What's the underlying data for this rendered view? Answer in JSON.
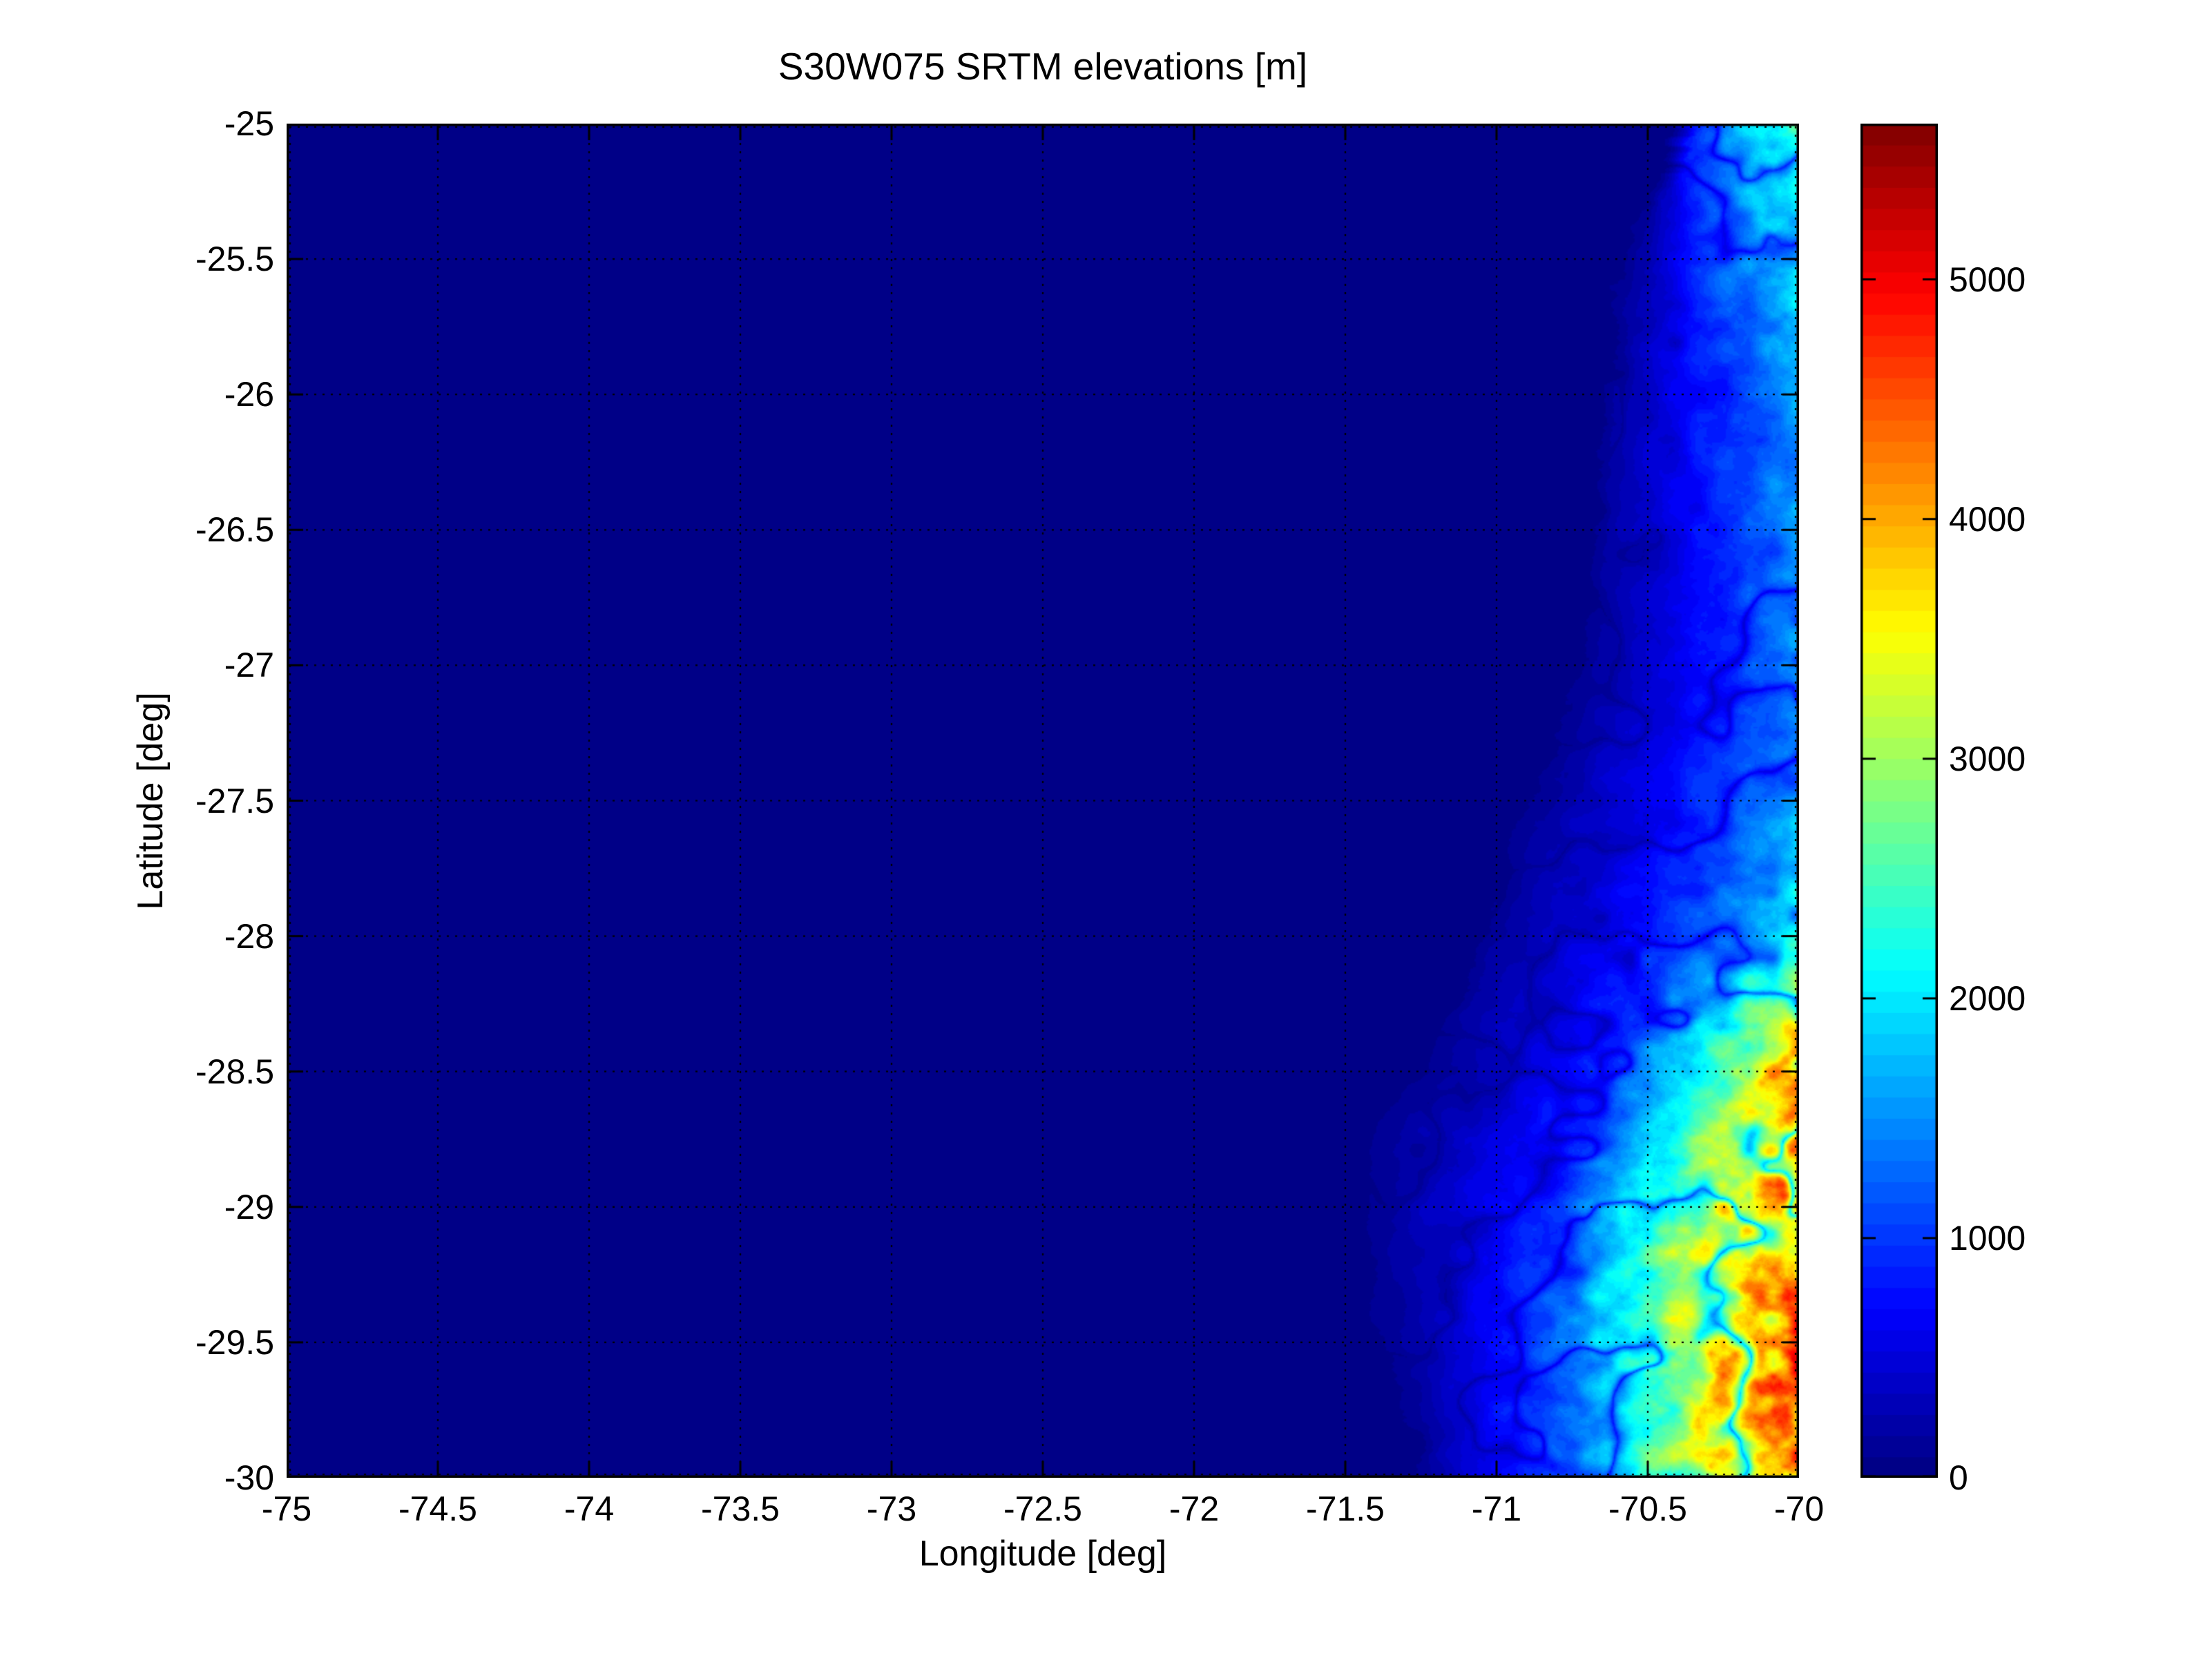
{
  "figure": {
    "title": "S30W075 SRTM elevations [m]",
    "xlabel": "Longitude [deg]",
    "ylabel": "Latitude [deg]"
  },
  "axes": {
    "xlim": [
      -75,
      -70
    ],
    "ylim": [
      -30,
      -25
    ],
    "x_ticks": [
      -75,
      -74.5,
      -74,
      -73.5,
      -73,
      -72.5,
      -72,
      -71.5,
      -71,
      -70.5,
      -70
    ],
    "y_ticks": [
      -25,
      -25.5,
      -26,
      -26.5,
      -27,
      -27.5,
      -28,
      -28.5,
      -29,
      -29.5,
      -30
    ],
    "grid_style": "dotted",
    "box_color": "#000000"
  },
  "colorbar": {
    "vmin": 0,
    "vmax": 5650,
    "ticks": [
      0,
      1000,
      2000,
      3000,
      4000,
      5000
    ],
    "colormap": "jet",
    "levels": 64
  },
  "colors": {
    "ocean": "#000087",
    "background": "#ffffff",
    "text": "#000000"
  },
  "chart_data": {
    "type": "heatmap",
    "title": "S30W075 SRTM elevations [m]",
    "xlabel": "Longitude [deg]",
    "ylabel": "Latitude [deg]",
    "value_units": "m",
    "colormap": "jet",
    "vmin": 0,
    "vmax": 5650,
    "x": [
      -75,
      -74.75,
      -74.5,
      -74.25,
      -74,
      -73.75,
      -73.5,
      -73.25,
      -73,
      -72.75,
      -72.5,
      -72.25,
      -72,
      -71.75,
      -71.5,
      -71.25,
      -71,
      -70.75,
      -70.5,
      -70.25,
      -70
    ],
    "y": [
      -25,
      -25.25,
      -25.5,
      -25.75,
      -26,
      -26.25,
      -26.5,
      -26.75,
      -27,
      -27.25,
      -27.5,
      -27.75,
      -28,
      -28.25,
      -28.5,
      -28.75,
      -29,
      -29.25,
      -29.5,
      -29.75,
      -30
    ],
    "coastline_lon_by_lat": [
      -70.45,
      -70.55,
      -70.62,
      -70.67,
      -70.7,
      -70.71,
      -70.73,
      -70.76,
      -70.8,
      -70.87,
      -70.95,
      -71.05,
      -71.12,
      -71.22,
      -71.33,
      -71.52,
      -71.56,
      -71.5,
      -71.46,
      -71.38,
      -71.3
    ],
    "elevation_grid_m": [
      [
        0,
        0,
        0,
        0,
        0,
        0,
        0,
        0,
        0,
        0,
        0,
        0,
        0,
        0,
        0,
        0,
        0,
        0,
        0,
        1600,
        2400
      ],
      [
        0,
        0,
        0,
        0,
        0,
        0,
        0,
        0,
        0,
        0,
        0,
        0,
        0,
        0,
        0,
        0,
        0,
        0,
        100,
        1400,
        2100
      ],
      [
        0,
        0,
        0,
        0,
        0,
        0,
        0,
        0,
        0,
        0,
        0,
        0,
        0,
        0,
        0,
        0,
        0,
        0,
        250,
        1200,
        1950
      ],
      [
        0,
        0,
        0,
        0,
        0,
        0,
        0,
        0,
        0,
        0,
        0,
        0,
        0,
        0,
        0,
        0,
        0,
        0,
        330,
        1050,
        1750
      ],
      [
        0,
        0,
        0,
        0,
        0,
        0,
        0,
        0,
        0,
        0,
        0,
        0,
        0,
        0,
        0,
        0,
        0,
        0,
        380,
        950,
        1550
      ],
      [
        0,
        0,
        0,
        0,
        0,
        0,
        0,
        0,
        0,
        0,
        0,
        0,
        0,
        0,
        0,
        0,
        0,
        0,
        400,
        900,
        1500
      ],
      [
        0,
        0,
        0,
        0,
        0,
        0,
        0,
        0,
        0,
        0,
        0,
        0,
        0,
        0,
        0,
        0,
        0,
        0,
        400,
        880,
        1450
      ],
      [
        0,
        0,
        0,
        0,
        0,
        0,
        0,
        0,
        0,
        0,
        0,
        0,
        0,
        0,
        0,
        0,
        0,
        0,
        420,
        880,
        1550
      ],
      [
        0,
        0,
        0,
        0,
        0,
        0,
        0,
        0,
        0,
        0,
        0,
        0,
        0,
        0,
        0,
        0,
        0,
        50,
        450,
        900,
        1650
      ],
      [
        0,
        0,
        0,
        0,
        0,
        0,
        0,
        0,
        0,
        0,
        0,
        0,
        0,
        0,
        0,
        0,
        0,
        150,
        520,
        950,
        1500
      ],
      [
        0,
        0,
        0,
        0,
        0,
        0,
        0,
        0,
        0,
        0,
        0,
        0,
        0,
        0,
        0,
        0,
        0,
        260,
        580,
        1000,
        1600
      ],
      [
        0,
        0,
        0,
        0,
        0,
        0,
        0,
        0,
        0,
        0,
        0,
        0,
        0,
        0,
        0,
        0,
        60,
        380,
        680,
        1150,
        1800
      ],
      [
        0,
        0,
        0,
        0,
        0,
        0,
        0,
        0,
        0,
        0,
        0,
        0,
        0,
        0,
        0,
        0,
        160,
        480,
        850,
        1350,
        2200
      ],
      [
        0,
        0,
        0,
        0,
        0,
        0,
        0,
        0,
        0,
        0,
        0,
        0,
        0,
        0,
        0,
        0,
        260,
        580,
        1050,
        1850,
        3000
      ],
      [
        0,
        0,
        0,
        0,
        0,
        0,
        0,
        0,
        0,
        0,
        0,
        0,
        0,
        0,
        0,
        60,
        380,
        750,
        1450,
        2600,
        3950
      ],
      [
        0,
        0,
        0,
        0,
        0,
        0,
        0,
        0,
        0,
        0,
        0,
        0,
        0,
        0,
        0,
        260,
        520,
        950,
        1900,
        3100,
        4300
      ],
      [
        0,
        0,
        0,
        0,
        0,
        0,
        0,
        0,
        0,
        0,
        0,
        0,
        0,
        0,
        0,
        320,
        640,
        1150,
        2250,
        3500,
        4250
      ],
      [
        0,
        0,
        0,
        0,
        0,
        0,
        0,
        0,
        0,
        0,
        0,
        0,
        0,
        0,
        0,
        260,
        680,
        1250,
        2450,
        3750,
        4500
      ],
      [
        0,
        0,
        0,
        0,
        0,
        0,
        0,
        0,
        0,
        0,
        0,
        0,
        0,
        0,
        0,
        220,
        720,
        1350,
        2450,
        3900,
        4350
      ],
      [
        0,
        0,
        0,
        0,
        0,
        0,
        0,
        0,
        0,
        0,
        0,
        0,
        0,
        0,
        0,
        160,
        680,
        1300,
        2350,
        3650,
        4400
      ],
      [
        0,
        0,
        0,
        0,
        0,
        0,
        0,
        0,
        0,
        0,
        0,
        0,
        0,
        0,
        0,
        100,
        620,
        1250,
        2250,
        3450,
        4250
      ]
    ]
  }
}
